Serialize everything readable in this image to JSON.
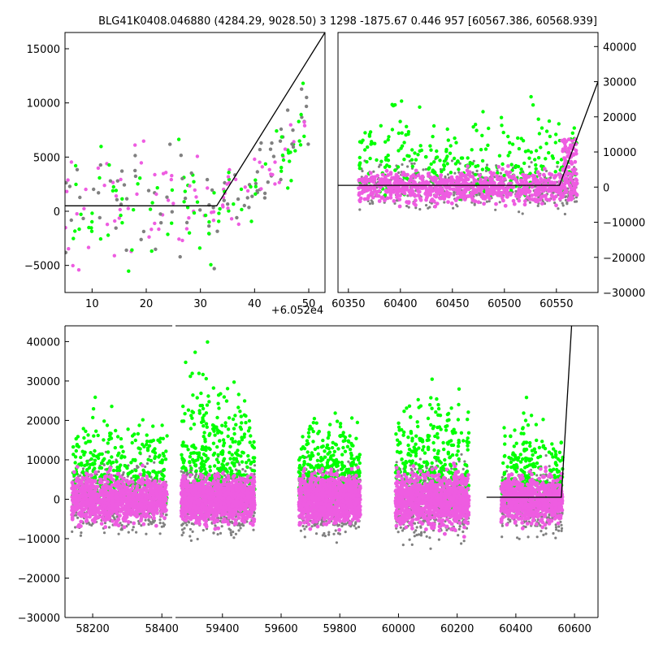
{
  "title": "BLG41K0408.046880 (4284.29, 9028.50)   3 1298 -1875.67 0.446 957 [60567.386, 60568.939]",
  "colors": {
    "green": "#00ff00",
    "gray": "#808080",
    "magenta": "#ee5ce1",
    "model": "#000000"
  },
  "chart_data": [
    {
      "type": "scatter",
      "panel": "top-left",
      "xlim": [
        5,
        53
      ],
      "ylim": [
        -7500,
        16500
      ],
      "x_offset_label": "+6.052e4",
      "x_ticks": [
        10,
        20,
        30,
        40,
        50
      ],
      "x_tick_labels": [
        "10",
        "20",
        "30",
        "40",
        "50"
      ],
      "y_ticks": [
        -5000,
        0,
        5000,
        10000,
        15000
      ],
      "y_tick_labels": [
        "−5000",
        "0",
        "5000",
        "10000",
        "15000"
      ],
      "model_line": {
        "x": [
          5,
          33,
          53
        ],
        "y": [
          500,
          500,
          16500
        ]
      }
    },
    {
      "type": "scatter",
      "panel": "top-right",
      "xlim": [
        60340,
        60590
      ],
      "ylim": [
        -30000,
        44000
      ],
      "x_ticks": [
        60350,
        60400,
        60450,
        60500,
        60550
      ],
      "x_tick_labels": [
        "60350",
        "60400",
        "60450",
        "60500",
        "60550"
      ],
      "y_ticks": [
        -30000,
        -20000,
        -10000,
        0,
        10000,
        20000,
        30000,
        40000
      ],
      "y_tick_labels": [
        "−30000",
        "−20000",
        "−10000",
        "0",
        "10000",
        "20000",
        "30000",
        "40000"
      ],
      "model_line": {
        "x": [
          60340,
          60553,
          60590
        ],
        "y": [
          500,
          500,
          30000
        ]
      }
    },
    {
      "type": "scatter",
      "panel": "bottom",
      "xlim": [
        58120,
        60680
      ],
      "ylim": [
        -30000,
        44000
      ],
      "x_ticks": [
        58200,
        58400,
        59400,
        59600,
        59800,
        60000,
        60200,
        60400,
        60600
      ],
      "x_tick_labels": [
        "58200",
        "58400",
        "59400",
        "59600",
        "59800",
        "60000",
        "60200",
        "60400",
        "60600"
      ],
      "y_ticks": [
        -30000,
        -20000,
        -10000,
        0,
        10000,
        20000,
        30000,
        40000
      ],
      "y_tick_labels": [
        "−30000",
        "−20000",
        "−10000",
        "0",
        "10000",
        "20000",
        "30000",
        "40000"
      ],
      "model_line": {
        "x": [
          60300,
          60555,
          60590
        ],
        "y": [
          500,
          500,
          44000
        ]
      }
    }
  ]
}
